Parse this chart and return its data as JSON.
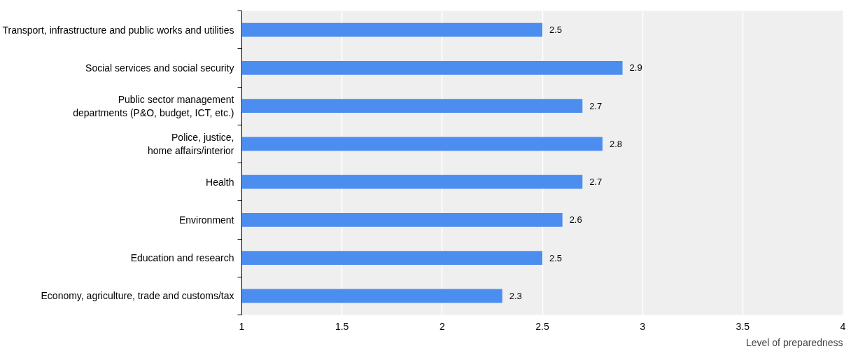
{
  "chart_data": {
    "type": "bar",
    "orientation": "horizontal",
    "xlabel": "Level of preparedness",
    "categories": [
      "Transport, infrastructure and public works and utilities",
      "Social services and social security",
      "Public sector management\ndepartments (P&O, budget, ICT, etc.)",
      "Police, justice,\nhome affairs/interior",
      "Health",
      "Environment",
      "Education and research",
      "Economy, agriculture, trade and customs/tax"
    ],
    "values": [
      2.5,
      2.9,
      2.7,
      2.8,
      2.7,
      2.6,
      2.5,
      2.3
    ],
    "color": "#4c8df0",
    "xlim": [
      1,
      4
    ],
    "xticks": [
      1,
      1.5,
      2,
      2.5,
      3,
      3.5,
      4
    ],
    "grid": "x",
    "data_labels": true
  }
}
